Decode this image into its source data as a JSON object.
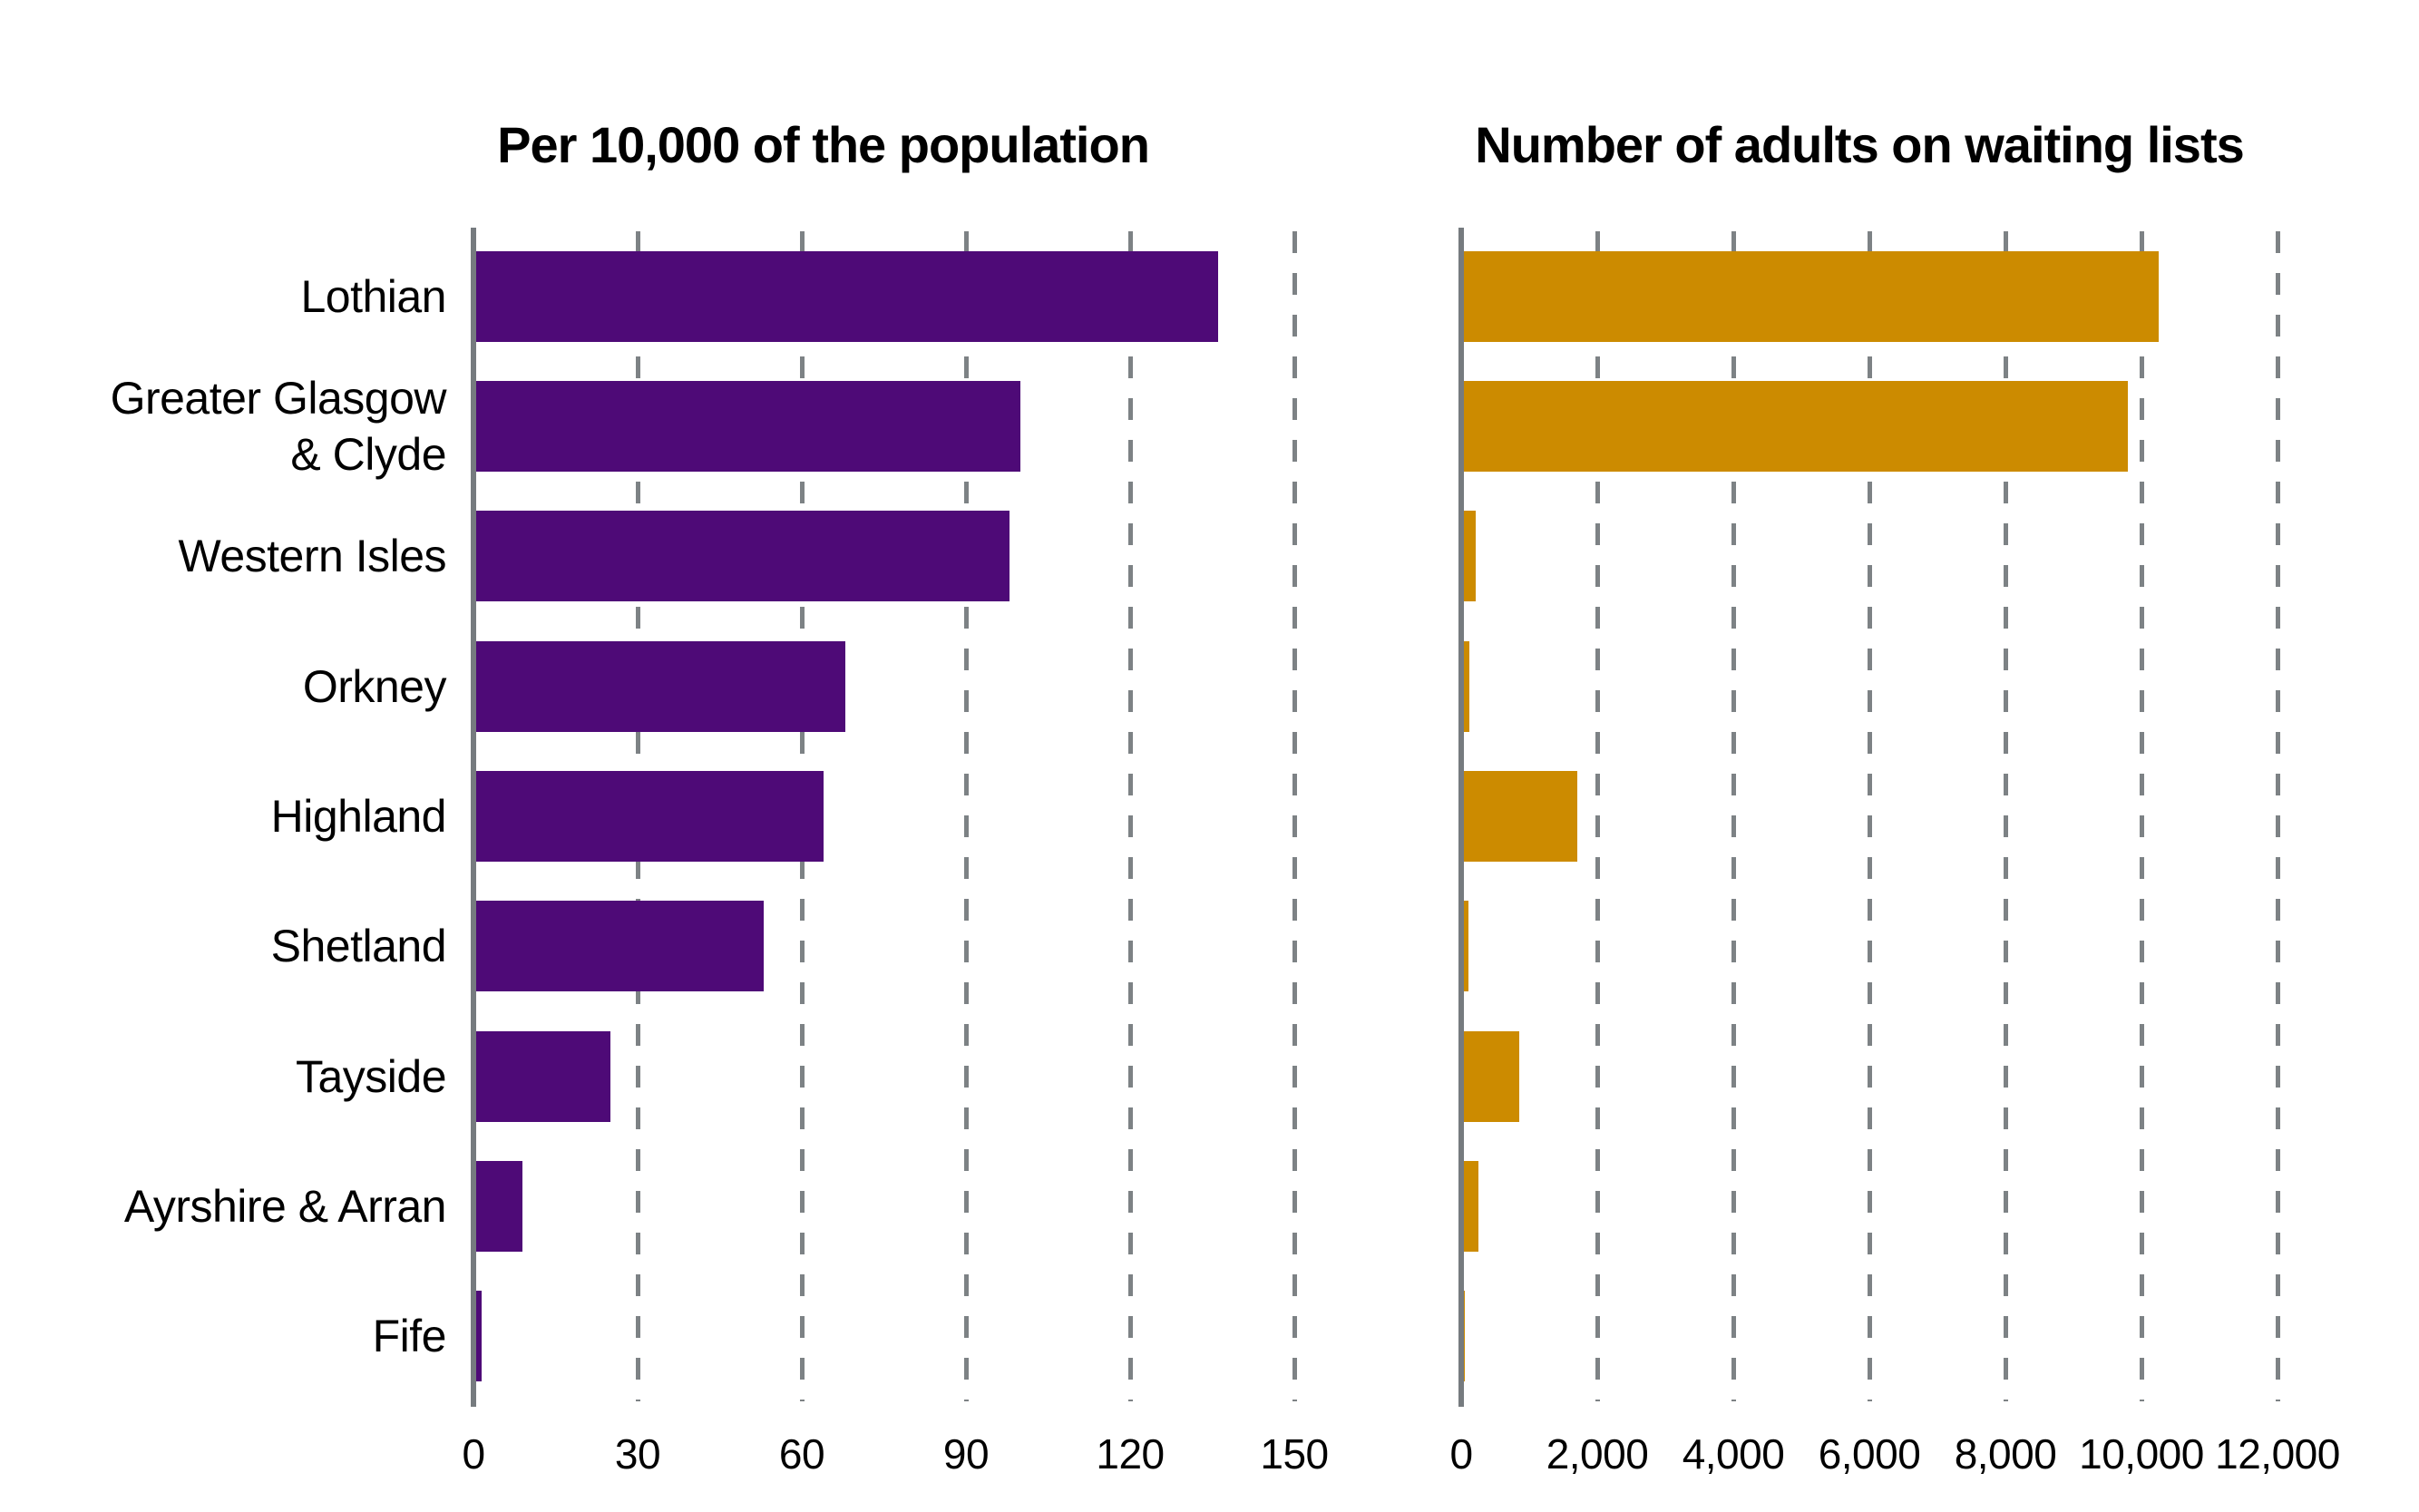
{
  "chart_data": {
    "type": "bar",
    "orientation": "horizontal",
    "grid": "dashed-vertical-gridlines",
    "legend": "none",
    "background_color": "#ffffff",
    "axis_color": "#767b7f",
    "gridline_color": "#7d8285",
    "text_color": "#000000",
    "categories": [
      "Lothian",
      "Greater Glasgow & Clyde",
      "Western Isles",
      "Orkney",
      "Highland",
      "Shetland",
      "Tayside",
      "Ayrshire & Arran",
      "Fife"
    ],
    "category_label_lines": [
      [
        "Lothian"
      ],
      [
        "Greater Glasgow",
        "& Clyde"
      ],
      [
        "Western Isles"
      ],
      [
        "Orkney"
      ],
      [
        "Highland"
      ],
      [
        "Shetland"
      ],
      [
        "Tayside"
      ],
      [
        "Ayrshire & Arran"
      ],
      [
        "Fife"
      ]
    ],
    "series": [
      {
        "name": "Per 10,000 of the population",
        "color": "#4e0a77",
        "xlim": [
          0,
          150
        ],
        "xticks": [
          0,
          30,
          60,
          90,
          120,
          150
        ],
        "xtick_labels": [
          "0",
          "30",
          "60",
          "90",
          "120",
          "150"
        ],
        "values": [
          136,
          100,
          98,
          68,
          64,
          53,
          25,
          9,
          1.5
        ]
      },
      {
        "name": "Number of adults on waiting lists",
        "color": "#cc8b00",
        "xlim": [
          0,
          12000
        ],
        "xticks": [
          0,
          2000,
          4000,
          6000,
          8000,
          10000,
          12000
        ],
        "xtick_labels": [
          "0",
          "2,000",
          "4,000",
          "6,000",
          "8,000",
          "10,000",
          "12,000"
        ],
        "values": [
          10250,
          9800,
          210,
          120,
          1700,
          100,
          850,
          250,
          50
        ]
      }
    ]
  }
}
